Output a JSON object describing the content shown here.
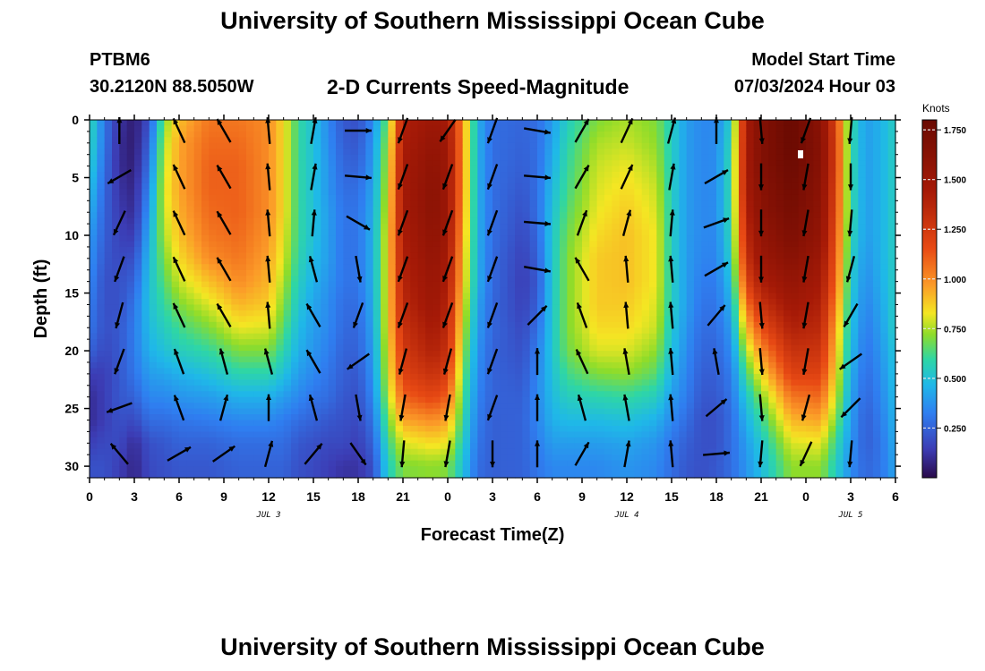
{
  "header": {
    "title": "University of Southern Mississippi Ocean Cube",
    "station": "PTBM6",
    "coords": "30.2120N  88.5050W",
    "plot_title": "2-D Currents Speed-Magnitude",
    "model_start_label": "Model Start Time",
    "model_start_value": "07/03/2024 Hour 03",
    "footer_title": "University of Southern Mississippi Ocean Cube"
  },
  "chart_data": {
    "type": "heatmap",
    "title": "2-D Currents Speed-Magnitude",
    "xlabel": "Forecast Time(Z)",
    "ylabel": "Depth (ft)",
    "colorbar_label": "Knots",
    "x_unit": "forecast hour",
    "xlim": [
      0,
      54
    ],
    "ylim": [
      0,
      31
    ],
    "y_inverted": true,
    "x_tick_labels": [
      "0",
      "3",
      "6",
      "9",
      "12",
      "15",
      "18",
      "21",
      "0",
      "3",
      "6",
      "9",
      "12",
      "15",
      "18",
      "21",
      "0",
      "3",
      "6"
    ],
    "y_ticks": [
      0,
      5,
      10,
      15,
      20,
      25,
      30
    ],
    "date_labels": [
      {
        "text": "JUL 3",
        "hour": 12
      },
      {
        "text": "JUL 4",
        "hour": 36
      },
      {
        "text": "JUL 5",
        "hour": 51
      }
    ],
    "colorbar_ticks": [
      "0.250",
      "0.500",
      "0.750",
      "1.000",
      "1.250",
      "1.500",
      "1.750"
    ],
    "colorbar_range": [
      0,
      1.8
    ],
    "depths": [
      0,
      2,
      4,
      6,
      8,
      10,
      12,
      14,
      16,
      18,
      20,
      22,
      24,
      26,
      28,
      30,
      31
    ],
    "time_profiles": [
      {
        "hour": 0,
        "speeds": [
          0.6,
          0.58,
          0.55,
          0.5,
          0.45,
          0.4,
          0.38,
          0.35,
          0.32,
          0.3,
          0.25,
          0.15,
          0.1,
          0.1,
          0.15,
          0.2,
          0.2
        ]
      },
      {
        "hour": 1,
        "speeds": [
          0.3,
          0.3,
          0.28,
          0.26,
          0.25,
          0.24,
          0.22,
          0.2,
          0.2,
          0.2,
          0.18,
          0.15,
          0.15,
          0.15,
          0.18,
          0.2,
          0.2
        ]
      },
      {
        "hour": 2,
        "speeds": [
          0.12,
          0.1,
          0.1,
          0.12,
          0.14,
          0.16,
          0.18,
          0.2,
          0.2,
          0.22,
          0.22,
          0.22,
          0.22,
          0.2,
          0.18,
          0.15,
          0.15
        ]
      },
      {
        "hour": 3,
        "speeds": [
          0.05,
          0.05,
          0.06,
          0.08,
          0.1,
          0.14,
          0.2,
          0.25,
          0.3,
          0.32,
          0.32,
          0.3,
          0.25,
          0.18,
          0.1,
          0.08,
          0.08
        ]
      },
      {
        "hour": 4,
        "speeds": [
          0.2,
          0.25,
          0.3,
          0.35,
          0.4,
          0.45,
          0.48,
          0.5,
          0.5,
          0.48,
          0.45,
          0.4,
          0.35,
          0.28,
          0.2,
          0.18,
          0.18
        ]
      },
      {
        "hour": 5,
        "speeds": [
          0.7,
          0.75,
          0.78,
          0.8,
          0.78,
          0.75,
          0.7,
          0.65,
          0.6,
          0.55,
          0.5,
          0.42,
          0.35,
          0.28,
          0.22,
          0.2,
          0.2
        ]
      },
      {
        "hour": 6,
        "speeds": [
          0.9,
          0.95,
          0.95,
          0.95,
          0.93,
          0.9,
          0.85,
          0.78,
          0.7,
          0.62,
          0.55,
          0.45,
          0.38,
          0.3,
          0.25,
          0.22,
          0.22
        ]
      },
      {
        "hour": 8,
        "speeds": [
          1.05,
          1.08,
          1.1,
          1.1,
          1.08,
          1.05,
          1.0,
          0.9,
          0.8,
          0.7,
          0.6,
          0.5,
          0.4,
          0.32,
          0.25,
          0.22,
          0.22
        ]
      },
      {
        "hour": 10,
        "speeds": [
          1.05,
          1.08,
          1.1,
          1.1,
          1.1,
          1.08,
          1.05,
          1.0,
          0.92,
          0.82,
          0.7,
          0.58,
          0.45,
          0.35,
          0.28,
          0.25,
          0.25
        ]
      },
      {
        "hour": 12,
        "speeds": [
          1.0,
          1.0,
          1.0,
          1.0,
          1.0,
          0.98,
          0.95,
          0.92,
          0.88,
          0.8,
          0.7,
          0.58,
          0.45,
          0.35,
          0.28,
          0.25,
          0.25
        ]
      },
      {
        "hour": 13,
        "speeds": [
          0.85,
          0.85,
          0.85,
          0.85,
          0.85,
          0.82,
          0.8,
          0.75,
          0.7,
          0.65,
          0.58,
          0.5,
          0.4,
          0.32,
          0.28,
          0.25,
          0.25
        ]
      },
      {
        "hour": 14,
        "speeds": [
          0.6,
          0.6,
          0.6,
          0.6,
          0.6,
          0.6,
          0.58,
          0.55,
          0.52,
          0.48,
          0.45,
          0.4,
          0.35,
          0.28,
          0.22,
          0.2,
          0.2
        ]
      },
      {
        "hour": 15,
        "speeds": [
          0.5,
          0.5,
          0.5,
          0.5,
          0.5,
          0.5,
          0.48,
          0.45,
          0.42,
          0.4,
          0.38,
          0.35,
          0.3,
          0.25,
          0.2,
          0.18,
          0.18
        ]
      },
      {
        "hour": 16,
        "speeds": [
          0.35,
          0.36,
          0.38,
          0.38,
          0.4,
          0.4,
          0.4,
          0.38,
          0.36,
          0.35,
          0.33,
          0.3,
          0.28,
          0.22,
          0.18,
          0.15,
          0.15
        ]
      },
      {
        "hour": 17,
        "speeds": [
          0.22,
          0.24,
          0.26,
          0.28,
          0.3,
          0.3,
          0.3,
          0.3,
          0.28,
          0.27,
          0.25,
          0.24,
          0.22,
          0.2,
          0.18,
          0.12,
          0.12
        ]
      },
      {
        "hour": 18,
        "speeds": [
          0.2,
          0.22,
          0.25,
          0.28,
          0.3,
          0.3,
          0.3,
          0.3,
          0.28,
          0.26,
          0.25,
          0.22,
          0.2,
          0.18,
          0.15,
          0.12,
          0.12
        ]
      },
      {
        "hour": 19,
        "speeds": [
          0.35,
          0.38,
          0.4,
          0.42,
          0.44,
          0.45,
          0.45,
          0.45,
          0.44,
          0.42,
          0.4,
          0.38,
          0.35,
          0.3,
          0.25,
          0.2,
          0.2
        ]
      },
      {
        "hour": 20,
        "speeds": [
          0.7,
          0.75,
          0.78,
          0.8,
          0.82,
          0.85,
          0.85,
          0.85,
          0.85,
          0.85,
          0.82,
          0.8,
          0.75,
          0.68,
          0.6,
          0.55,
          0.55
        ]
      },
      {
        "hour": 21,
        "speeds": [
          1.4,
          1.42,
          1.45,
          1.45,
          1.45,
          1.42,
          1.4,
          1.38,
          1.35,
          1.3,
          1.25,
          1.2,
          1.1,
          0.95,
          0.8,
          0.7,
          0.7
        ]
      },
      {
        "hour": 23,
        "speeds": [
          1.5,
          1.55,
          1.58,
          1.6,
          1.6,
          1.58,
          1.55,
          1.52,
          1.5,
          1.45,
          1.4,
          1.3,
          1.18,
          1.0,
          0.85,
          0.72,
          0.72
        ]
      },
      {
        "hour": 24,
        "speeds": [
          1.45,
          1.48,
          1.5,
          1.5,
          1.5,
          1.48,
          1.45,
          1.42,
          1.38,
          1.35,
          1.3,
          1.22,
          1.1,
          0.95,
          0.82,
          0.7,
          0.7
        ]
      },
      {
        "hour": 25,
        "speeds": [
          1.0,
          1.0,
          1.0,
          1.0,
          0.98,
          0.95,
          0.92,
          0.9,
          0.85,
          0.8,
          0.75,
          0.7,
          0.65,
          0.6,
          0.55,
          0.5,
          0.5
        ]
      },
      {
        "hour": 26,
        "speeds": [
          0.45,
          0.45,
          0.45,
          0.45,
          0.45,
          0.45,
          0.45,
          0.45,
          0.42,
          0.4,
          0.38,
          0.36,
          0.34,
          0.32,
          0.3,
          0.28,
          0.28
        ]
      },
      {
        "hour": 27,
        "speeds": [
          0.28,
          0.28,
          0.28,
          0.28,
          0.28,
          0.28,
          0.27,
          0.27,
          0.26,
          0.26,
          0.25,
          0.25,
          0.25,
          0.24,
          0.24,
          0.24,
          0.24
        ]
      },
      {
        "hour": 29,
        "speeds": [
          0.26,
          0.25,
          0.24,
          0.22,
          0.2,
          0.18,
          0.16,
          0.15,
          0.16,
          0.18,
          0.2,
          0.22,
          0.24,
          0.25,
          0.25,
          0.25,
          0.25
        ]
      },
      {
        "hour": 30,
        "speeds": [
          0.28,
          0.28,
          0.28,
          0.28,
          0.28,
          0.26,
          0.24,
          0.22,
          0.24,
          0.28,
          0.32,
          0.34,
          0.35,
          0.34,
          0.32,
          0.3,
          0.3
        ]
      },
      {
        "hour": 31,
        "speeds": [
          0.4,
          0.42,
          0.45,
          0.48,
          0.5,
          0.52,
          0.52,
          0.52,
          0.52,
          0.52,
          0.52,
          0.5,
          0.48,
          0.45,
          0.4,
          0.35,
          0.35
        ]
      },
      {
        "hour": 32,
        "speeds": [
          0.55,
          0.58,
          0.6,
          0.62,
          0.65,
          0.68,
          0.7,
          0.7,
          0.7,
          0.7,
          0.68,
          0.62,
          0.55,
          0.48,
          0.4,
          0.35,
          0.35
        ]
      },
      {
        "hour": 34,
        "speeds": [
          0.7,
          0.75,
          0.78,
          0.8,
          0.82,
          0.85,
          0.88,
          0.88,
          0.88,
          0.85,
          0.8,
          0.7,
          0.58,
          0.48,
          0.4,
          0.35,
          0.35
        ]
      },
      {
        "hour": 36,
        "speeds": [
          0.75,
          0.78,
          0.82,
          0.85,
          0.88,
          0.9,
          0.9,
          0.9,
          0.88,
          0.85,
          0.8,
          0.72,
          0.6,
          0.5,
          0.42,
          0.38,
          0.38
        ]
      },
      {
        "hour": 38,
        "speeds": [
          0.7,
          0.72,
          0.75,
          0.78,
          0.8,
          0.82,
          0.82,
          0.82,
          0.8,
          0.78,
          0.72,
          0.65,
          0.55,
          0.45,
          0.38,
          0.35,
          0.35
        ]
      },
      {
        "hour": 39,
        "speeds": [
          0.55,
          0.55,
          0.55,
          0.55,
          0.55,
          0.55,
          0.55,
          0.55,
          0.55,
          0.52,
          0.5,
          0.45,
          0.4,
          0.35,
          0.3,
          0.28,
          0.28
        ]
      },
      {
        "hour": 40,
        "speeds": [
          0.4,
          0.4,
          0.4,
          0.4,
          0.4,
          0.4,
          0.4,
          0.4,
          0.4,
          0.38,
          0.36,
          0.34,
          0.32,
          0.28,
          0.24,
          0.22,
          0.22
        ]
      },
      {
        "hour": 41,
        "speeds": [
          0.35,
          0.35,
          0.35,
          0.35,
          0.35,
          0.35,
          0.34,
          0.32,
          0.3,
          0.28,
          0.26,
          0.24,
          0.22,
          0.2,
          0.2,
          0.2,
          0.2
        ]
      },
      {
        "hour": 42,
        "speeds": [
          0.35,
          0.36,
          0.36,
          0.36,
          0.36,
          0.35,
          0.34,
          0.32,
          0.3,
          0.28,
          0.26,
          0.24,
          0.22,
          0.2,
          0.2,
          0.22,
          0.22
        ]
      },
      {
        "hour": 43,
        "speeds": [
          0.55,
          0.58,
          0.6,
          0.6,
          0.6,
          0.58,
          0.55,
          0.5,
          0.45,
          0.4,
          0.36,
          0.32,
          0.3,
          0.28,
          0.28,
          0.28,
          0.28
        ]
      },
      {
        "hour": 44,
        "speeds": [
          1.45,
          1.45,
          1.45,
          1.45,
          1.4,
          1.35,
          1.3,
          1.2,
          1.05,
          0.9,
          0.75,
          0.62,
          0.52,
          0.45,
          0.4,
          0.38,
          0.38
        ]
      },
      {
        "hour": 45,
        "speeds": [
          1.65,
          1.65,
          1.65,
          1.62,
          1.6,
          1.55,
          1.5,
          1.42,
          1.3,
          1.15,
          1.0,
          0.85,
          0.7,
          0.6,
          0.52,
          0.48,
          0.48
        ]
      },
      {
        "hour": 47,
        "speeds": [
          1.8,
          1.8,
          1.78,
          1.75,
          1.72,
          1.68,
          1.62,
          1.55,
          1.48,
          1.4,
          1.3,
          1.2,
          1.05,
          0.92,
          0.8,
          0.72,
          0.72
        ]
      },
      {
        "hour": 49,
        "speeds": [
          1.6,
          1.62,
          1.62,
          1.6,
          1.58,
          1.55,
          1.5,
          1.45,
          1.4,
          1.35,
          1.28,
          1.2,
          1.08,
          0.95,
          0.82,
          0.72,
          0.72
        ]
      },
      {
        "hour": 50,
        "speeds": [
          1.2,
          1.22,
          1.22,
          1.2,
          1.18,
          1.15,
          1.12,
          1.08,
          1.02,
          0.95,
          0.9,
          0.85,
          0.78,
          0.7,
          0.6,
          0.55,
          0.55
        ]
      },
      {
        "hour": 51,
        "speeds": [
          0.6,
          0.6,
          0.6,
          0.6,
          0.6,
          0.58,
          0.56,
          0.54,
          0.52,
          0.5,
          0.48,
          0.45,
          0.42,
          0.4,
          0.38,
          0.36,
          0.36
        ]
      },
      {
        "hour": 52,
        "speeds": [
          0.4,
          0.4,
          0.4,
          0.4,
          0.4,
          0.4,
          0.38,
          0.36,
          0.34,
          0.32,
          0.3,
          0.28,
          0.26,
          0.24,
          0.24,
          0.26,
          0.26
        ]
      },
      {
        "hour": 53,
        "speeds": [
          0.45,
          0.45,
          0.45,
          0.45,
          0.45,
          0.45,
          0.45,
          0.44,
          0.42,
          0.4,
          0.38,
          0.36,
          0.34,
          0.32,
          0.3,
          0.3,
          0.3
        ]
      },
      {
        "hour": 54,
        "speeds": [
          0.55,
          0.55,
          0.55,
          0.55,
          0.55,
          0.55,
          0.55,
          0.55,
          0.55,
          0.55,
          0.52,
          0.5,
          0.48,
          0.46,
          0.44,
          0.42,
          0.42
        ]
      }
    ],
    "vector_depths": [
      0,
      4,
      8,
      12,
      16,
      20,
      24,
      28
    ],
    "vector_columns": [
      {
        "hour": 2,
        "directions": [
          0,
          240,
          205,
          200,
          195,
          200,
          250,
          320
        ]
      },
      {
        "hour": 6,
        "directions": [
          335,
          335,
          335,
          335,
          335,
          340,
          340,
          60
        ]
      },
      {
        "hour": 9,
        "directions": [
          330,
          330,
          330,
          330,
          330,
          345,
          15,
          55
        ]
      },
      {
        "hour": 12,
        "directions": [
          355,
          355,
          355,
          355,
          355,
          345,
          0,
          15
        ]
      },
      {
        "hour": 15,
        "directions": [
          10,
          10,
          5,
          345,
          330,
          330,
          345,
          40
        ]
      },
      {
        "hour": 18,
        "directions": [
          90,
          95,
          120,
          170,
          200,
          235,
          170,
          145
        ]
      },
      {
        "hour": 21,
        "directions": [
          200,
          200,
          200,
          200,
          200,
          195,
          190,
          185
        ]
      },
      {
        "hour": 24,
        "directions": [
          215,
          200,
          200,
          200,
          200,
          195,
          190,
          190
        ]
      },
      {
        "hour": 27,
        "directions": [
          200,
          200,
          200,
          200,
          200,
          200,
          200,
          180
        ]
      },
      {
        "hour": 30,
        "directions": [
          100,
          95,
          95,
          100,
          45,
          0,
          0,
          0
        ]
      },
      {
        "hour": 33,
        "directions": [
          30,
          30,
          20,
          330,
          340,
          335,
          345,
          30
        ]
      },
      {
        "hour": 36,
        "directions": [
          25,
          25,
          15,
          355,
          355,
          350,
          350,
          10
        ]
      },
      {
        "hour": 39,
        "directions": [
          15,
          10,
          5,
          355,
          355,
          355,
          355,
          355
        ]
      },
      {
        "hour": 42,
        "directions": [
          0,
          60,
          70,
          60,
          40,
          350,
          50,
          85
        ]
      },
      {
        "hour": 45,
        "directions": [
          175,
          180,
          180,
          180,
          175,
          175,
          175,
          185
        ]
      },
      {
        "hour": 48,
        "directions": [
          200,
          190,
          190,
          190,
          190,
          190,
          195,
          205
        ]
      },
      {
        "hour": 51,
        "directions": [
          185,
          180,
          185,
          195,
          210,
          235,
          225,
          185
        ]
      }
    ]
  }
}
